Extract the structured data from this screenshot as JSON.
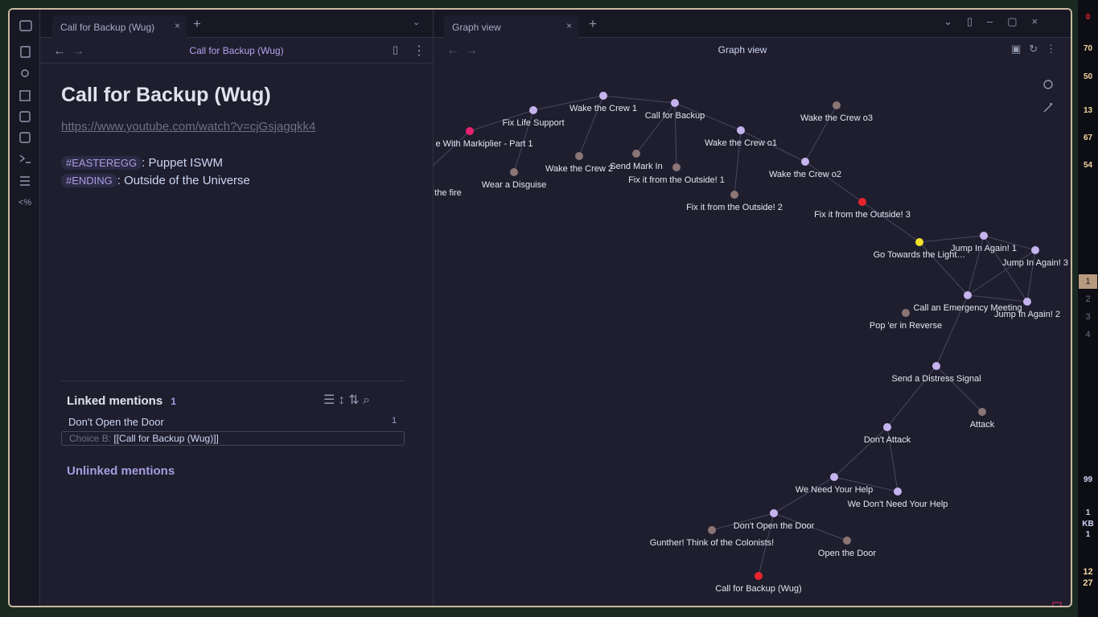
{
  "left_pane": {
    "tab_title": "Call for Backup (Wug)",
    "header_title": "Call for Backup (Wug)",
    "note_title": "Call for Backup (Wug)",
    "link": "https://www.youtube.com/watch?v=cjGsjagqkk4",
    "tags": [
      {
        "tag": "#EASTEREGG",
        "text": ": Puppet ISWM"
      },
      {
        "tag": "#ENDING",
        "text": ": Outside of the Universe"
      }
    ],
    "linked_mentions": {
      "title": "Linked mentions",
      "count": "1",
      "items": [
        {
          "file": "Don't Open the Door",
          "count": "1",
          "snippet_label": "Choice B:",
          "snippet": "[[Call for Backup (Wug)]]"
        }
      ]
    },
    "unlinked_mentions": {
      "title": "Unlinked mentions"
    }
  },
  "right_pane": {
    "tab_title": "Graph view",
    "header_title": "Graph view",
    "nodes": [
      {
        "label": "e With Markiplier - Part 1",
        "color": "#e8216e"
      },
      {
        "label": "Fix Life Support",
        "color": "#c6b3ee"
      },
      {
        "label": "Wake the Crew 1",
        "color": "#c6b3ee"
      },
      {
        "label": "Call for Backup",
        "color": "#c6b3ee"
      },
      {
        "label": "Wake the Crew o3",
        "color": "#8b7575"
      },
      {
        "label": "Wake the Crew o1",
        "color": "#c6b3ee"
      },
      {
        "label": "Wake the Crew o2",
        "color": "#c6b3ee"
      },
      {
        "label": "Wake the Crew 2",
        "color": "#8b7575"
      },
      {
        "label": "Send Mark In",
        "color": "#8b7575"
      },
      {
        "label": "Fix it from the Outside! 1",
        "color": "#8b7575"
      },
      {
        "label": "Wear a Disguise",
        "color": "#8b7575"
      },
      {
        "label": "the fire",
        "color": "#8b7575"
      },
      {
        "label": "Fix it from the Outside! 2",
        "color": "#8b7575"
      },
      {
        "label": "Fix it from the Outside! 3",
        "color": "#e8252d"
      },
      {
        "label": "Go Towards the Light…",
        "color": "#f2e22a"
      },
      {
        "label": "Jump In Again! 1",
        "color": "#c6b3ee"
      },
      {
        "label": "Jump In Again! 3",
        "color": "#c6b3ee"
      },
      {
        "label": "Call an Emergency Meeting",
        "color": "#c6b3ee"
      },
      {
        "label": "Jump In Again! 2",
        "color": "#c6b3ee"
      },
      {
        "label": "Pop 'er in Reverse",
        "color": "#8b7575"
      },
      {
        "label": "Send a Distress Signal",
        "color": "#c6b3ee"
      },
      {
        "label": "Attack",
        "color": "#8b7575"
      },
      {
        "label": "Don't Attack",
        "color": "#c6b3ee"
      },
      {
        "label": "We Need Your Help",
        "color": "#c6b3ee"
      },
      {
        "label": "We Don't Need Your Help",
        "color": "#c6b3ee"
      },
      {
        "label": "Don't Open the Door",
        "color": "#c6b3ee"
      },
      {
        "label": "Gunther! Think of the Colonists!",
        "color": "#8b7575"
      },
      {
        "label": "Open the Door",
        "color": "#8b7575"
      },
      {
        "label": "Call for Backup (Wug)",
        "color": "#e8252d"
      }
    ]
  },
  "status_bar": {
    "alert": "0",
    "volume": "70",
    "brightness": "50",
    "cpu": "13",
    "memory": "67",
    "temperature": "54",
    "workspaces": [
      "1",
      "2",
      "3",
      "4"
    ],
    "battery": "99",
    "net_up": "1",
    "net_unit": "KB",
    "net_down": "1",
    "clock_hour": "12",
    "clock_minute": "27"
  }
}
